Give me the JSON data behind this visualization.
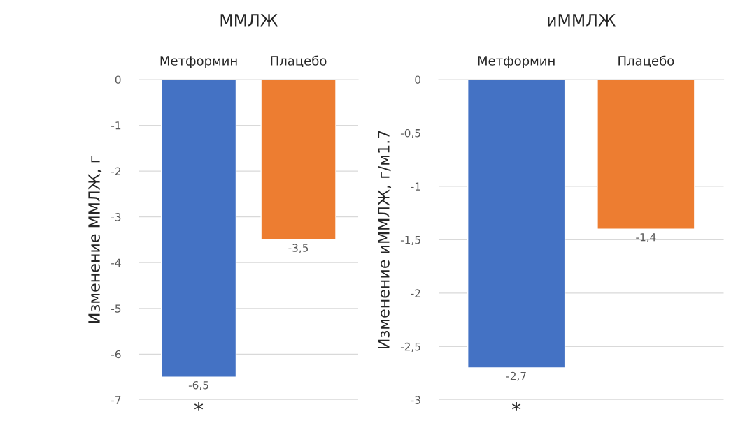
{
  "chart_data": [
    {
      "type": "bar",
      "title": "ММЛЖ",
      "ylabel": "Изменение ММЛЖ, г",
      "categories": [
        "Метформин",
        "Плацебо"
      ],
      "values": [
        -6.5,
        -3.5
      ],
      "colors": [
        "#4472c4",
        "#ed7d31"
      ],
      "value_labels": [
        "-6,5",
        "-3,5"
      ],
      "ylim": [
        -7,
        0
      ],
      "yticks": [
        0,
        -1,
        -2,
        -3,
        -4,
        -5,
        -6,
        -7
      ],
      "grid": "y",
      "annotations": [
        "*"
      ]
    },
    {
      "type": "bar",
      "title": "иММЛЖ",
      "ylabel": "Изменение иММЛЖ, г/м1.7",
      "categories": [
        "Метформин",
        "Плацебо"
      ],
      "values": [
        -2.7,
        -1.4
      ],
      "colors": [
        "#4472c4",
        "#ed7d31"
      ],
      "value_labels": [
        "-2,7",
        "-1,4"
      ],
      "ylim": [
        -3,
        0
      ],
      "yticks": [
        0,
        {
          "value": -0.5,
          "label": "-0,5"
        },
        -1,
        {
          "value": -1.5,
          "label": "-1,5"
        },
        -2,
        {
          "value": -2.5,
          "label": "-2,5"
        },
        -3
      ],
      "grid": "y",
      "annotations": [
        "*"
      ]
    }
  ]
}
